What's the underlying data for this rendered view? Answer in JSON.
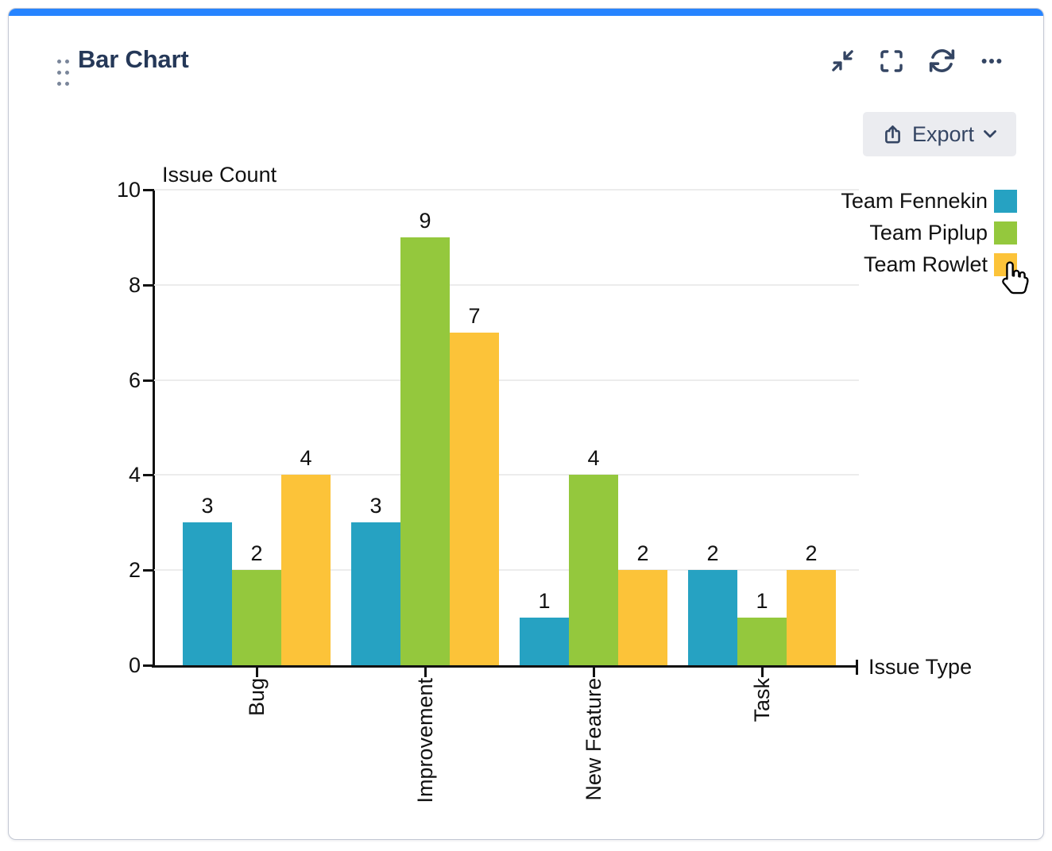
{
  "gadget": {
    "title": "Bar Chart",
    "toolbar": {
      "icons": [
        "collapse-icon",
        "fullscreen-icon",
        "refresh-icon",
        "more-options-icon"
      ]
    },
    "export_button": {
      "label": "Export",
      "icons": [
        "export-icon",
        "chevron-down-icon"
      ]
    }
  },
  "chart_data": {
    "type": "bar",
    "title": "",
    "xlabel": "Issue Type",
    "ylabel": "Issue Count",
    "categories": [
      "Bug",
      "Improvement",
      "New Feature",
      "Task"
    ],
    "series": [
      {
        "name": "Team Fennekin",
        "color": "#26a2c2",
        "values": [
          3,
          3,
          1,
          2
        ]
      },
      {
        "name": "Team Piplup",
        "color": "#94c83d",
        "values": [
          2,
          9,
          4,
          1
        ]
      },
      {
        "name": "Team Rowlet",
        "color": "#fcc339",
        "values": [
          4,
          7,
          2,
          2
        ]
      }
    ],
    "ylim": [
      0,
      10
    ],
    "yticks": [
      0,
      2,
      4,
      6,
      8,
      10
    ],
    "grid": true,
    "bar_value_labels": true,
    "legend_position": "right",
    "x_tick_label_rotation": -90
  },
  "cursor": {
    "icon": "hand-pointer-icon",
    "over_legend_item": "Team Rowlet"
  },
  "colors": {
    "accent": "#2684ff",
    "title": "#253858",
    "icon": "#344563",
    "export_bg": "#ebecf0",
    "card_border": "#c3c8d4",
    "grid": "#ececec"
  }
}
